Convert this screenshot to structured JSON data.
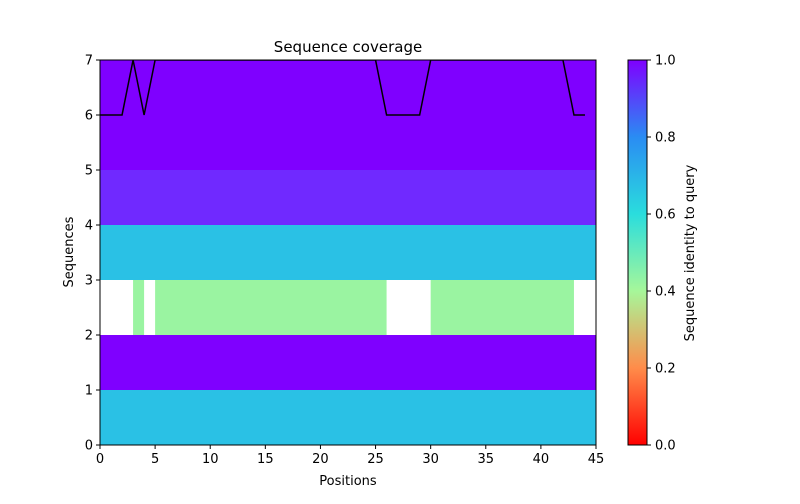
{
  "chart_data": {
    "type": "heatmap",
    "title": "Sequence coverage",
    "xlabel": "Positions",
    "ylabel": "Sequences",
    "xlim": [
      0,
      45
    ],
    "ylim": [
      0,
      7
    ],
    "xticks": [
      0,
      5,
      10,
      15,
      20,
      25,
      30,
      35,
      40,
      45
    ],
    "yticks": [
      0,
      1,
      2,
      3,
      4,
      5,
      6,
      7
    ],
    "colorbar": {
      "label": "Sequence identity to query",
      "range": [
        0,
        1
      ],
      "ticks": [
        "0.0",
        "0.2",
        "0.4",
        "0.6",
        "0.8",
        "1.0"
      ],
      "colormap": "rainbow_r"
    },
    "rows": [
      {
        "index": 0,
        "segments": [
          {
            "start": 0,
            "end": 45,
            "identity": 0.67
          }
        ]
      },
      {
        "index": 1,
        "segments": [
          {
            "start": 0,
            "end": 45,
            "identity": 1.0
          }
        ]
      },
      {
        "index": 2,
        "segments": [
          {
            "start": 3,
            "end": 4,
            "identity": 0.42
          },
          {
            "start": 5,
            "end": 26,
            "identity": 0.42
          },
          {
            "start": 30,
            "end": 43,
            "identity": 0.42
          }
        ]
      },
      {
        "index": 3,
        "segments": [
          {
            "start": 0,
            "end": 45,
            "identity": 0.67
          }
        ]
      },
      {
        "index": 4,
        "segments": [
          {
            "start": 0,
            "end": 45,
            "identity": 0.95
          }
        ]
      },
      {
        "index": 5,
        "segments": [
          {
            "start": 0,
            "end": 45,
            "identity": 1.0
          }
        ]
      },
      {
        "index": 6,
        "segments": [
          {
            "start": 0,
            "end": 45,
            "identity": 1.0
          }
        ]
      }
    ],
    "coverage_line": {
      "x": [
        0,
        1,
        2,
        3,
        4,
        5,
        6,
        7,
        8,
        9,
        10,
        11,
        12,
        13,
        14,
        15,
        16,
        17,
        18,
        19,
        20,
        21,
        22,
        23,
        24,
        25,
        26,
        27,
        28,
        29,
        30,
        31,
        32,
        33,
        34,
        35,
        36,
        37,
        38,
        39,
        40,
        41,
        42,
        43,
        44
      ],
      "y": [
        6,
        6,
        6,
        7,
        6,
        7,
        7,
        7,
        7,
        7,
        7,
        7,
        7,
        7,
        7,
        7,
        7,
        7,
        7,
        7,
        7,
        7,
        7,
        7,
        7,
        7,
        6,
        6,
        6,
        6,
        7,
        7,
        7,
        7,
        7,
        7,
        7,
        7,
        7,
        7,
        7,
        7,
        7,
        6,
        6
      ],
      "color": "#000000"
    },
    "colors": {
      "identity_1_0": "#7f00ff",
      "identity_0_95": "#7029ff",
      "identity_0_67": "#2adddd",
      "identity_0_42": "#a6f79a"
    }
  }
}
